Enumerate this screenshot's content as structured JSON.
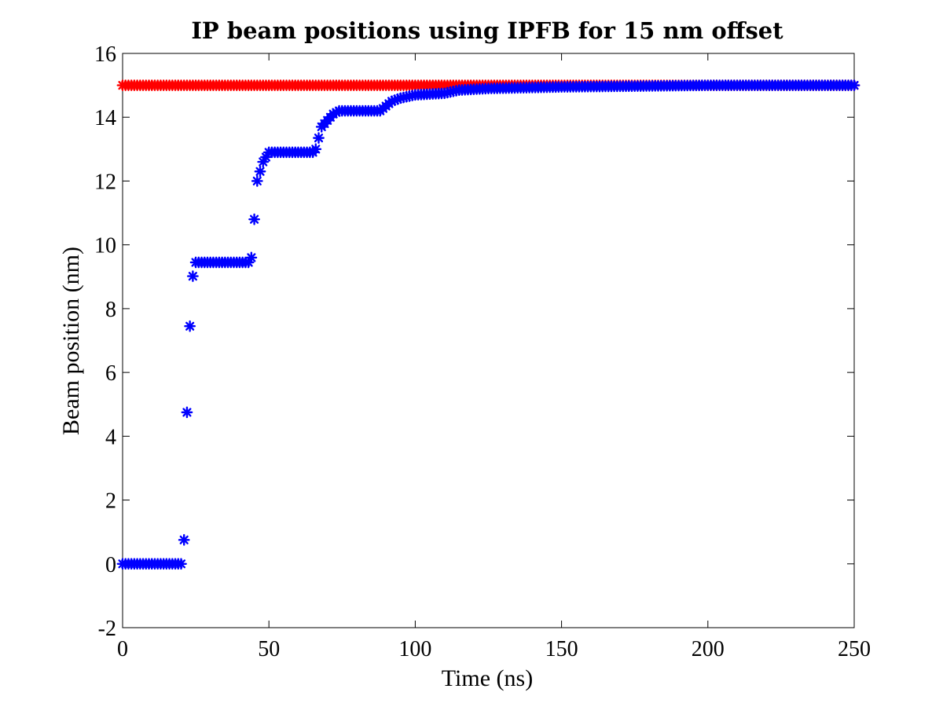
{
  "chart_data": {
    "type": "scatter",
    "title": "IP beam positions using IPFB for 15 nm offset",
    "xlabel": "Time (ns)",
    "ylabel": "Beam position (nm)",
    "xlim": [
      0,
      250
    ],
    "ylim": [
      -2,
      16
    ],
    "xticks": [
      "0",
      "50",
      "100",
      "150",
      "200",
      "250"
    ],
    "yticks": [
      "-2",
      "0",
      "2",
      "4",
      "6",
      "8",
      "10",
      "12",
      "14",
      "16"
    ],
    "grid": false,
    "legend": "none",
    "marker": "asterisk",
    "series": [
      {
        "color": "#ff0000",
        "x_range": [
          0,
          250
        ],
        "constant_y": 15,
        "description_points": [
          [
            0,
            15
          ],
          [
            250,
            15
          ]
        ]
      },
      {
        "color": "#0000ff",
        "points": [
          [
            0,
            0
          ],
          [
            20,
            0
          ],
          [
            21,
            0.75
          ],
          [
            22,
            4.75
          ],
          [
            23.5,
            8.8
          ],
          [
            25,
            9.45
          ],
          [
            43,
            9.45
          ],
          [
            44,
            9.6
          ],
          [
            45,
            10.8
          ],
          [
            46,
            12.0
          ],
          [
            47,
            12.3
          ],
          [
            48,
            12.6
          ],
          [
            50,
            12.9
          ],
          [
            65,
            12.9
          ],
          [
            66,
            13.0
          ],
          [
            67,
            13.35
          ],
          [
            68,
            13.7
          ],
          [
            70,
            13.9
          ],
          [
            72,
            14.1
          ],
          [
            74,
            14.2
          ],
          [
            88,
            14.2
          ],
          [
            90,
            14.35
          ],
          [
            92,
            14.5
          ],
          [
            95,
            14.6
          ],
          [
            100,
            14.7
          ],
          [
            110,
            14.75
          ],
          [
            115,
            14.85
          ],
          [
            125,
            14.9
          ],
          [
            150,
            14.95
          ],
          [
            200,
            15.0
          ],
          [
            250,
            15.0
          ]
        ]
      }
    ]
  }
}
